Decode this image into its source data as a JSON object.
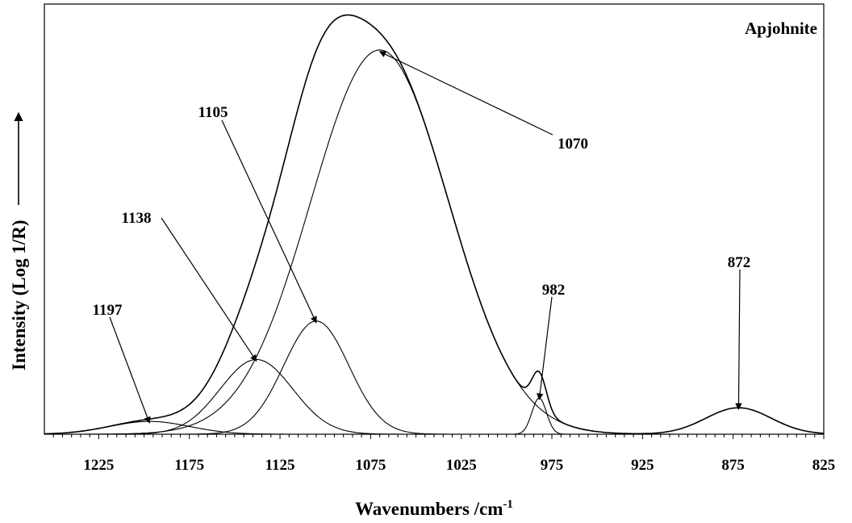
{
  "chart_data": {
    "type": "line",
    "title": "Apjohnite",
    "xlabel": "Wavenumbers /cm",
    "xlabel_superscript": "-1",
    "ylabel": "Intensity (Log 1/R)",
    "ylabel_arrow": true,
    "x_reversed": true,
    "xlim": [
      1255,
      825
    ],
    "ylim": [
      0,
      1.0
    ],
    "x_ticks": [
      1225,
      1175,
      1125,
      1075,
      1025,
      975,
      925,
      875,
      825
    ],
    "x_minor_step": 5,
    "y_tick_labels": false,
    "grid": false,
    "legend": "none",
    "bands": [
      {
        "label": "1197",
        "center": 1197,
        "height": 0.03,
        "width": 22
      },
      {
        "label": "1138",
        "center": 1138,
        "height": 0.175,
        "width": 20
      },
      {
        "label": "1105",
        "center": 1105,
        "height": 0.265,
        "width": 18
      },
      {
        "label": "1070",
        "center": 1070,
        "height": 0.9,
        "width": 38
      },
      {
        "label": "982",
        "center": 982,
        "height": 0.085,
        "width": 4
      },
      {
        "label": "872",
        "center": 872,
        "height": 0.062,
        "width": 18
      }
    ],
    "annotations": [
      {
        "text": "1197",
        "x": 1197
      },
      {
        "text": "1138",
        "x": 1138
      },
      {
        "text": "1105",
        "x": 1105
      },
      {
        "text": "1070",
        "x": 1070
      },
      {
        "text": "982",
        "x": 982
      },
      {
        "text": "872",
        "x": 872
      }
    ]
  }
}
